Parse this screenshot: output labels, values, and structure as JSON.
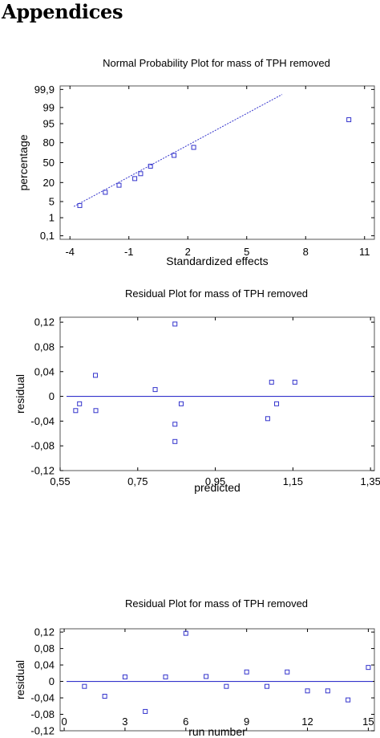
{
  "page": {
    "heading": "Appendices"
  },
  "colors": {
    "accent": "#3333cc",
    "axis": "#000000",
    "frame": "#555555"
  },
  "chart_data": [
    {
      "type": "scatter",
      "title": "Normal Probability Plot for mass of TPH removed",
      "xlabel": "Standardized effects",
      "ylabel": "percentage",
      "xlim": [
        -4.5,
        11.5
      ],
      "x_ticks": [
        -4,
        -1,
        2,
        5,
        8,
        11
      ],
      "x_tick_labels": [
        "-4",
        "-1",
        "2",
        "5",
        "8",
        "11"
      ],
      "y_scale": "normal-probability",
      "y_ticks": [
        0.1,
        1,
        5,
        20,
        50,
        80,
        95,
        99,
        99.9
      ],
      "y_tick_labels": [
        "0,1",
        "1",
        "5",
        "20",
        "50",
        "80",
        "95",
        "99",
        "99,9"
      ],
      "points": [
        {
          "x": -3.5,
          "y": 3.5
        },
        {
          "x": -2.2,
          "y": 10.5
        },
        {
          "x": -1.5,
          "y": 17
        },
        {
          "x": -0.7,
          "y": 25
        },
        {
          "x": -0.4,
          "y": 32
        },
        {
          "x": 0.1,
          "y": 44
        },
        {
          "x": 1.3,
          "y": 62
        },
        {
          "x": 2.3,
          "y": 74
        },
        {
          "x": 10.2,
          "y": 96.5
        }
      ],
      "reference_line": {
        "from": {
          "x": -3.8,
          "y": 3.2
        },
        "to": {
          "x": 6.8,
          "y": 99.8
        }
      },
      "grid": false
    },
    {
      "type": "scatter",
      "title": "Residual Plot for mass of TPH removed",
      "xlabel": "predicted",
      "ylabel": "residual",
      "xlim": [
        0.55,
        1.36
      ],
      "ylim": [
        -0.12,
        0.128
      ],
      "x_ticks": [
        0.55,
        0.75,
        0.95,
        1.15,
        1.35
      ],
      "x_tick_labels": [
        "0,55",
        "0,75",
        "0,95",
        "1,15",
        "1,35"
      ],
      "y_ticks": [
        0.12,
        0.08,
        0.04,
        0,
        -0.04,
        -0.08,
        -0.12
      ],
      "y_tick_labels": [
        "0,12",
        "0,08",
        "0,04",
        "0",
        "-0,04",
        "-0,08",
        "-0,12"
      ],
      "zero_line": 0,
      "points": [
        {
          "x": 0.59,
          "y": -0.023
        },
        {
          "x": 0.6,
          "y": -0.012
        },
        {
          "x": 0.641,
          "y": 0.034
        },
        {
          "x": 0.642,
          "y": -0.023
        },
        {
          "x": 0.795,
          "y": 0.011
        },
        {
          "x": 0.846,
          "y": 0.117
        },
        {
          "x": 0.846,
          "y": -0.045
        },
        {
          "x": 0.846,
          "y": -0.073
        },
        {
          "x": 0.862,
          "y": -0.012
        },
        {
          "x": 1.085,
          "y": -0.036
        },
        {
          "x": 1.095,
          "y": 0.023
        },
        {
          "x": 1.108,
          "y": -0.012
        },
        {
          "x": 1.155,
          "y": 0.023
        }
      ],
      "grid": false
    },
    {
      "type": "scatter",
      "title": "Residual Plot for mass of TPH removed",
      "xlabel": "run number",
      "ylabel": "residual",
      "xlim": [
        -0.2,
        15.3
      ],
      "ylim": [
        -0.12,
        0.128
      ],
      "x_ticks": [
        0,
        3,
        6,
        9,
        12,
        15
      ],
      "x_tick_labels": [
        "0",
        "3",
        "6",
        "9",
        "12",
        "15"
      ],
      "y_ticks": [
        0.12,
        0.08,
        0.04,
        0,
        -0.04,
        -0.08,
        -0.12
      ],
      "y_tick_labels": [
        "0,12",
        "0,08",
        "0,04",
        "0",
        "-0,04",
        "-0,08",
        "-0,12"
      ],
      "zero_line": 0,
      "points": [
        {
          "x": 1,
          "y": -0.012
        },
        {
          "x": 2,
          "y": -0.036
        },
        {
          "x": 3,
          "y": 0.011
        },
        {
          "x": 4,
          "y": -0.073
        },
        {
          "x": 5,
          "y": 0.011
        },
        {
          "x": 6,
          "y": 0.117
        },
        {
          "x": 7,
          "y": 0.012
        },
        {
          "x": 8,
          "y": -0.012
        },
        {
          "x": 9,
          "y": 0.023
        },
        {
          "x": 10,
          "y": -0.012
        },
        {
          "x": 11,
          "y": 0.023
        },
        {
          "x": 12,
          "y": -0.023
        },
        {
          "x": 13,
          "y": -0.023
        },
        {
          "x": 14,
          "y": -0.045
        },
        {
          "x": 15,
          "y": 0.034
        }
      ],
      "grid": false
    }
  ]
}
